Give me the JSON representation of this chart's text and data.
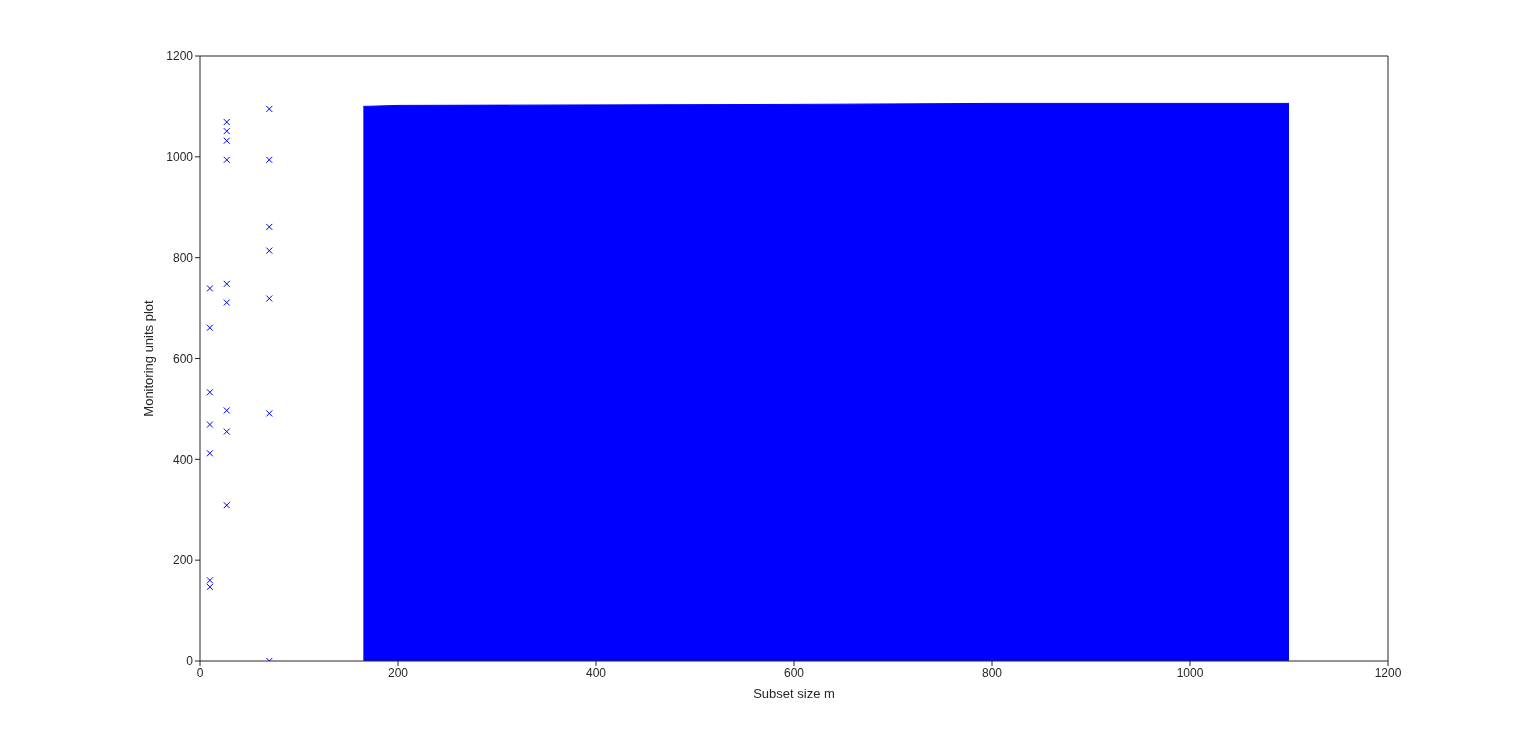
{
  "chart_data": {
    "type": "scatter",
    "xlabel": "Subset size m",
    "ylabel": "Monitoring units plot",
    "xlim": [
      0,
      1200
    ],
    "ylim": [
      0,
      1200
    ],
    "xticks": [
      0,
      200,
      400,
      600,
      800,
      1000,
      1200
    ],
    "yticks": [
      0,
      200,
      400,
      600,
      800,
      1000,
      1200
    ],
    "grid": false,
    "marker": "cross",
    "series": [
      {
        "type": "area",
        "marker": "none",
        "color": "#0000ff",
        "x": [
          165,
          200,
          400,
          600,
          800,
          1100
        ],
        "values": [
          1100,
          1102,
          1103,
          1104,
          1106,
          1106
        ]
      },
      {
        "color": "#0000ff",
        "x": [
          10,
          10,
          10,
          10,
          10,
          10,
          10,
          27,
          27,
          27,
          27,
          27,
          27,
          27,
          27,
          27,
          70,
          70,
          70,
          70,
          70,
          70,
          70
        ],
        "values": [
          739,
          661,
          533,
          469,
          412,
          160,
          147,
          1069,
          1051,
          1032,
          994,
          748,
          711,
          497,
          455,
          309,
          1095,
          994,
          861,
          814,
          719,
          491,
          0
        ]
      }
    ]
  }
}
